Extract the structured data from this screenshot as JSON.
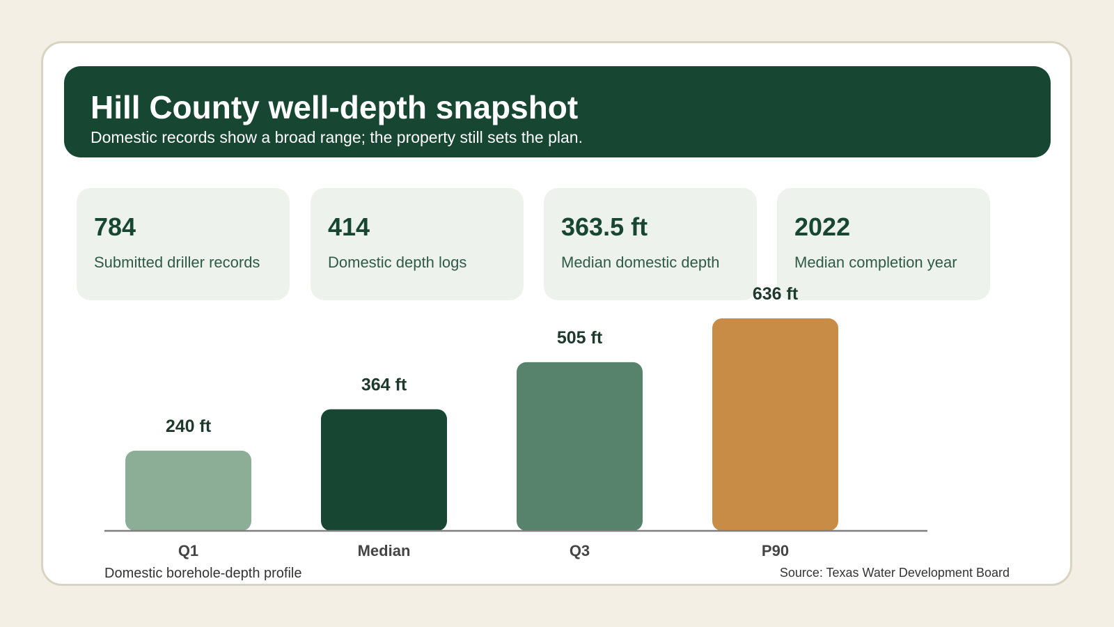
{
  "header": {
    "title": "Hill County well-depth snapshot",
    "subtitle": "Domestic records show a broad range; the property still sets the plan."
  },
  "stats": [
    {
      "value": "784",
      "label": "Submitted driller records"
    },
    {
      "value": "414",
      "label": "Domestic depth logs"
    },
    {
      "value": "363.5 ft",
      "label": "Median domestic depth"
    },
    {
      "value": "2022",
      "label": "Median completion year"
    }
  ],
  "chart_data": {
    "type": "bar",
    "categories": [
      "Q1",
      "Median",
      "Q3",
      "P90"
    ],
    "values": [
      240,
      364,
      505,
      636
    ],
    "value_labels": [
      "240 ft",
      "364 ft",
      "505 ft",
      "636 ft"
    ],
    "colors": [
      "#8cae97",
      "#174632",
      "#57836c",
      "#c98c46"
    ],
    "ylim": [
      0,
      636
    ],
    "grid": false,
    "legend": "none"
  },
  "footer": {
    "caption": "Domestic borehole-depth profile",
    "source": "Source: Texas Water Development Board"
  }
}
